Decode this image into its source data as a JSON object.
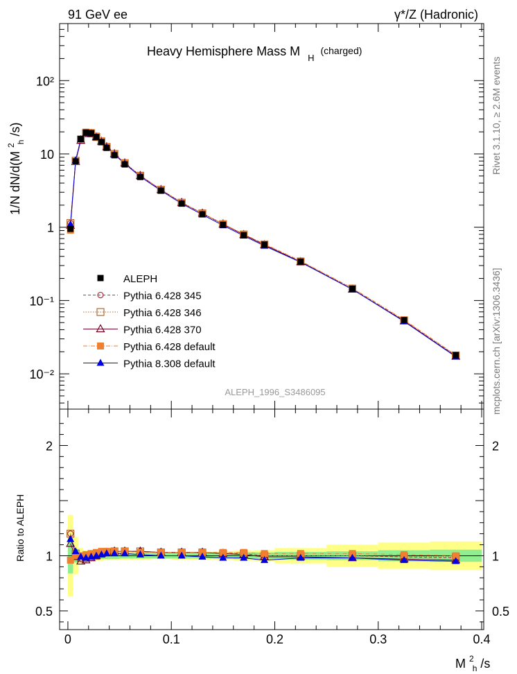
{
  "header": {
    "left": "91 GeV ee",
    "right": "γ*/Z (Hadronic)"
  },
  "side_labels": {
    "rivet": "Rivet 3.1.10, ≥ 2.6M events",
    "mcplots": "mcplots.cern.ch [arXiv:1306.3436]"
  },
  "chart_data": {
    "type": "line",
    "title": "Heavy Hemisphere Mass M",
    "title_sub": "H",
    "title_suffix": "(charged)",
    "analysis_tag": "ALEPH_1996_S3486095",
    "xlabel": "M",
    "xlabel_sup": "2",
    "xlabel_sub": "h",
    "xlabel_tail": "/s",
    "ylabel": "1/N dN/d(M",
    "ylabel_sup": "2",
    "ylabel_sub": "h",
    "ylabel_tail": "/s)",
    "ratio_ylabel": "Ratio to ALEPH",
    "xlim": [
      -0.008,
      0.402
    ],
    "ylim": [
      0.0033,
      600
    ],
    "yscale": "log",
    "ratio_ylim": [
      0.33,
      2.33
    ],
    "x_ticks": [
      "0",
      "0.1",
      "0.2",
      "0.3",
      "0.4"
    ],
    "y_ticks": [
      "10⁻²",
      "10⁻¹",
      "1",
      "10",
      "10²"
    ],
    "ratio_ticks": [
      "0.5",
      "1",
      "2"
    ],
    "legend": {
      "position": "bottom-left",
      "entries": [
        "ALEPH",
        "Pythia 6.428 345",
        "Pythia 6.428 346",
        "Pythia 6.428 370",
        "Pythia 6.428 default",
        "Pythia 8.308 default"
      ]
    },
    "x": [
      0.0025,
      0.0075,
      0.0125,
      0.0175,
      0.0225,
      0.0275,
      0.0325,
      0.0375,
      0.045,
      0.055,
      0.07,
      0.09,
      0.11,
      0.13,
      0.15,
      0.17,
      0.19,
      0.225,
      0.275,
      0.325,
      0.375
    ],
    "data": {
      "name": "ALEPH",
      "values": [
        0.95,
        7.9,
        16.0,
        19.6,
        19.2,
        17.0,
        14.5,
        12.1,
        9.6,
        7.2,
        4.85,
        3.15,
        2.1,
        1.5,
        1.08,
        0.78,
        0.58,
        0.34,
        0.145,
        0.054,
        0.018
      ],
      "band_inner": [
        0.16,
        0.06,
        0.03,
        0.03,
        0.03,
        0.03,
        0.03,
        0.03,
        0.03,
        0.025,
        0.025,
        0.025,
        0.025,
        0.025,
        0.025,
        0.03,
        0.03,
        0.035,
        0.04,
        0.05,
        0.055
      ],
      "band_outer": [
        0.37,
        0.17,
        0.07,
        0.05,
        0.05,
        0.045,
        0.045,
        0.04,
        0.04,
        0.035,
        0.035,
        0.03,
        0.035,
        0.035,
        0.04,
        0.045,
        0.05,
        0.07,
        0.1,
        0.12,
        0.13
      ]
    },
    "series": [
      {
        "name": "Pythia 6.428 345",
        "color": "#b03040",
        "marker": "circle-open",
        "dash": "4,3",
        "ratio": [
          1.2,
          1.0,
          0.97,
          0.97,
          0.98,
          1.0,
          1.02,
          1.03,
          1.04,
          1.04,
          1.04,
          1.03,
          1.03,
          1.03,
          1.02,
          1.02,
          1.0,
          1.0,
          1.0,
          0.99,
          0.98
        ]
      },
      {
        "name": "Pythia 6.428 346",
        "color": "#b06a30",
        "marker": "square-open",
        "dash": "1.5,2",
        "ratio": [
          1.2,
          1.02,
          0.98,
          0.98,
          0.99,
          1.0,
          1.02,
          1.03,
          1.04,
          1.04,
          1.04,
          1.03,
          1.03,
          1.03,
          1.02,
          1.02,
          1.0,
          1.0,
          1.0,
          0.99,
          0.99
        ]
      },
      {
        "name": "Pythia 6.428 370",
        "color": "#700020",
        "marker": "triangle-open",
        "dash": "",
        "ratio": [
          1.11,
          0.99,
          0.95,
          0.96,
          0.98,
          1.0,
          1.02,
          1.03,
          1.04,
          1.04,
          1.04,
          1.03,
          1.03,
          1.03,
          1.02,
          1.01,
          0.99,
          0.99,
          0.98,
          0.97,
          0.96
        ]
      },
      {
        "name": "Pythia 6.428 default",
        "color": "#f08030",
        "marker": "square-filled",
        "dash": "6,2,1,2",
        "ratio": [
          0.96,
          1.0,
          1.0,
          1.01,
          1.02,
          1.03,
          1.04,
          1.04,
          1.04,
          1.04,
          1.03,
          1.03,
          1.03,
          1.03,
          1.03,
          1.03,
          1.02,
          1.02,
          1.02,
          1.01,
          1.0
        ]
      },
      {
        "name": "Pythia 8.308 default",
        "color": "#0000e0",
        "marker": "triangle-filled",
        "dash": "",
        "ratio": [
          1.15,
          1.04,
          0.99,
          0.98,
          0.99,
          1.0,
          1.01,
          1.02,
          1.02,
          1.02,
          1.01,
          1.0,
          1.0,
          0.99,
          0.98,
          0.98,
          0.96,
          0.98,
          0.98,
          0.96,
          0.95
        ]
      }
    ]
  }
}
